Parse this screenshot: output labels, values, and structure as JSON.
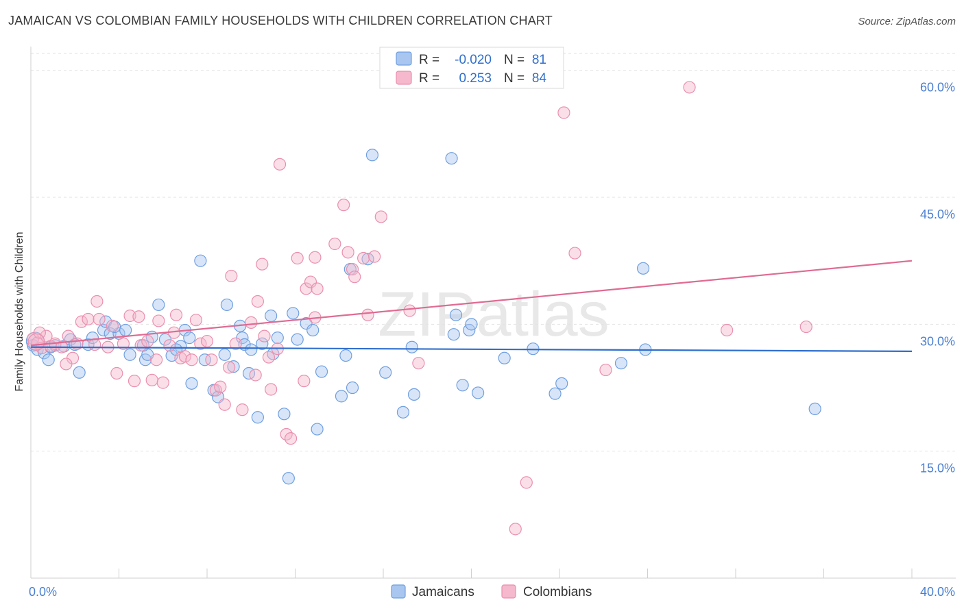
{
  "title": "JAMAICAN VS COLOMBIAN FAMILY HOUSEHOLDS WITH CHILDREN CORRELATION CHART",
  "source": "Source: ZipAtlas.com",
  "watermark": "ZIPatlas",
  "colors": {
    "jamaican_fill": "#a9c6f0",
    "jamaican_stroke": "#6f9fe0",
    "jamaican_line": "#2f6fce",
    "colombian_fill": "#f5b8cc",
    "colombian_stroke": "#ea8fae",
    "colombian_line": "#e06a92",
    "tick": "#4a7fd0"
  },
  "legend": {
    "rows": [
      {
        "r_label": "R =",
        "r_value": "-0.020",
        "n_label": "N =",
        "n_value": "81"
      },
      {
        "r_label": "R =",
        "r_value": "0.253",
        "n_label": "N =",
        "n_value": "84"
      }
    ]
  },
  "bottom_legend": {
    "series1": "Jamaicans",
    "series2": "Colombians"
  },
  "chart_data": {
    "type": "scatter",
    "xlabel": "",
    "ylabel": "Family Households with Children",
    "xlim": [
      0,
      40
    ],
    "ylim": [
      0,
      62
    ],
    "x_tick_labels": [
      {
        "value": 0,
        "label": "0.0%"
      },
      {
        "value": 40,
        "label": "40.0%"
      }
    ],
    "y_tick_labels": [
      {
        "value": 15,
        "label": "15.0%"
      },
      {
        "value": 30,
        "label": "30.0%"
      },
      {
        "value": 45,
        "label": "45.0%"
      },
      {
        "value": 60,
        "label": "60.0%"
      }
    ],
    "series": [
      {
        "name": "Jamaicans",
        "trend": [
          [
            0,
            27.3
          ],
          [
            40,
            26.8
          ]
        ],
        "points": [
          [
            0.1,
            27.5
          ],
          [
            0.3,
            27.0
          ],
          [
            0.6,
            26.6
          ],
          [
            0.8,
            25.8
          ],
          [
            0.9,
            27.3
          ],
          [
            1.1,
            27.5
          ],
          [
            1.5,
            27.4
          ],
          [
            1.8,
            28.2
          ],
          [
            2.0,
            27.6
          ],
          [
            2.6,
            27.6
          ],
          [
            2.8,
            28.4
          ],
          [
            3.3,
            29.3
          ],
          [
            3.4,
            30.3
          ],
          [
            3.6,
            28.9
          ],
          [
            4.0,
            28.9
          ],
          [
            3.8,
            29.7
          ],
          [
            4.5,
            26.4
          ],
          [
            5.2,
            25.8
          ],
          [
            5.3,
            26.4
          ],
          [
            5.1,
            27.5
          ],
          [
            5.5,
            28.5
          ],
          [
            5.8,
            32.3
          ],
          [
            6.1,
            28.2
          ],
          [
            6.4,
            26.3
          ],
          [
            6.8,
            27.4
          ],
          [
            7.0,
            29.3
          ],
          [
            7.2,
            28.4
          ],
          [
            7.3,
            23.0
          ],
          [
            7.7,
            37.5
          ],
          [
            7.9,
            25.8
          ],
          [
            8.3,
            22.2
          ],
          [
            8.5,
            21.4
          ],
          [
            8.8,
            26.4
          ],
          [
            8.9,
            32.3
          ],
          [
            9.2,
            25.0
          ],
          [
            9.6,
            28.4
          ],
          [
            9.7,
            27.6
          ],
          [
            9.9,
            24.2
          ],
          [
            10.0,
            27.0
          ],
          [
            10.3,
            19.0
          ],
          [
            10.5,
            27.7
          ],
          [
            10.9,
            31.0
          ],
          [
            11.0,
            26.5
          ],
          [
            11.2,
            28.4
          ],
          [
            11.5,
            19.4
          ],
          [
            11.7,
            11.8
          ],
          [
            11.9,
            31.3
          ],
          [
            12.5,
            30.1
          ],
          [
            12.8,
            29.3
          ],
          [
            13.0,
            17.6
          ],
          [
            13.2,
            24.4
          ],
          [
            14.1,
            21.5
          ],
          [
            14.3,
            26.3
          ],
          [
            14.5,
            36.5
          ],
          [
            14.6,
            22.5
          ],
          [
            15.3,
            37.7
          ],
          [
            15.5,
            50.0
          ],
          [
            16.1,
            24.3
          ],
          [
            16.9,
            19.6
          ],
          [
            17.3,
            27.3
          ],
          [
            17.4,
            21.7
          ],
          [
            19.1,
            49.6
          ],
          [
            19.2,
            28.8
          ],
          [
            19.3,
            31.1
          ],
          [
            19.6,
            22.8
          ],
          [
            19.9,
            29.3
          ],
          [
            20.0,
            30.0
          ],
          [
            20.3,
            21.9
          ],
          [
            21.5,
            26.0
          ],
          [
            22.8,
            27.1
          ],
          [
            23.8,
            21.8
          ],
          [
            24.1,
            23.0
          ],
          [
            26.8,
            25.4
          ],
          [
            27.8,
            36.6
          ],
          [
            27.9,
            27.0
          ],
          [
            35.6,
            20.0
          ],
          [
            2.2,
            24.3
          ],
          [
            4.3,
            29.3
          ],
          [
            6.6,
            27.0
          ],
          [
            9.5,
            29.8
          ],
          [
            12.1,
            28.2
          ]
        ]
      },
      {
        "name": "Colombians",
        "trend": [
          [
            0,
            27.5
          ],
          [
            40,
            37.5
          ]
        ],
        "points": [
          [
            0.1,
            28.3
          ],
          [
            0.3,
            27.8
          ],
          [
            0.5,
            27.2
          ],
          [
            0.7,
            28.6
          ],
          [
            0.9,
            27.4
          ],
          [
            1.1,
            27.7
          ],
          [
            1.4,
            27.3
          ],
          [
            1.7,
            28.6
          ],
          [
            1.9,
            26.0
          ],
          [
            2.1,
            27.7
          ],
          [
            2.3,
            30.3
          ],
          [
            2.6,
            30.6
          ],
          [
            2.9,
            27.6
          ],
          [
            3.1,
            30.6
          ],
          [
            3.5,
            27.3
          ],
          [
            3.7,
            29.8
          ],
          [
            3.9,
            24.2
          ],
          [
            4.2,
            27.7
          ],
          [
            4.5,
            31.0
          ],
          [
            4.9,
            30.9
          ],
          [
            5.0,
            27.5
          ],
          [
            5.3,
            28.0
          ],
          [
            5.5,
            23.4
          ],
          [
            5.7,
            25.8
          ],
          [
            5.8,
            30.4
          ],
          [
            6.0,
            23.1
          ],
          [
            6.3,
            27.5
          ],
          [
            6.5,
            29.0
          ],
          [
            6.6,
            31.1
          ],
          [
            6.8,
            26.0
          ],
          [
            7.0,
            26.2
          ],
          [
            7.3,
            25.8
          ],
          [
            7.5,
            30.5
          ],
          [
            7.7,
            27.7
          ],
          [
            8.0,
            28.0
          ],
          [
            8.2,
            25.8
          ],
          [
            8.4,
            22.2
          ],
          [
            8.6,
            22.6
          ],
          [
            9.0,
            24.9
          ],
          [
            9.1,
            35.7
          ],
          [
            9.3,
            27.7
          ],
          [
            9.6,
            19.9
          ],
          [
            10.0,
            30.2
          ],
          [
            10.2,
            24.0
          ],
          [
            10.3,
            32.7
          ],
          [
            10.5,
            37.1
          ],
          [
            10.6,
            28.6
          ],
          [
            10.8,
            26.1
          ],
          [
            10.9,
            22.3
          ],
          [
            11.2,
            27.1
          ],
          [
            11.3,
            48.9
          ],
          [
            11.6,
            17.0
          ],
          [
            11.8,
            16.5
          ],
          [
            12.1,
            37.8
          ],
          [
            12.4,
            23.3
          ],
          [
            12.5,
            34.2
          ],
          [
            12.7,
            35.0
          ],
          [
            12.9,
            37.9
          ],
          [
            13.0,
            34.2
          ],
          [
            13.8,
            39.5
          ],
          [
            14.2,
            44.1
          ],
          [
            14.4,
            38.5
          ],
          [
            14.6,
            36.5
          ],
          [
            14.7,
            35.6
          ],
          [
            15.1,
            37.8
          ],
          [
            15.3,
            31.1
          ],
          [
            15.6,
            38.0
          ],
          [
            15.9,
            42.7
          ],
          [
            17.2,
            31.6
          ],
          [
            17.6,
            25.4
          ],
          [
            22.0,
            5.8
          ],
          [
            22.5,
            11.3
          ],
          [
            24.2,
            55.0
          ],
          [
            24.7,
            38.4
          ],
          [
            26.1,
            24.6
          ],
          [
            29.9,
            58.0
          ],
          [
            31.6,
            29.3
          ],
          [
            35.2,
            29.7
          ],
          [
            1.6,
            25.3
          ],
          [
            3.0,
            32.7
          ],
          [
            4.7,
            23.3
          ],
          [
            8.8,
            20.5
          ],
          [
            12.9,
            30.8
          ],
          [
            0.4,
            29.0
          ]
        ]
      }
    ]
  }
}
